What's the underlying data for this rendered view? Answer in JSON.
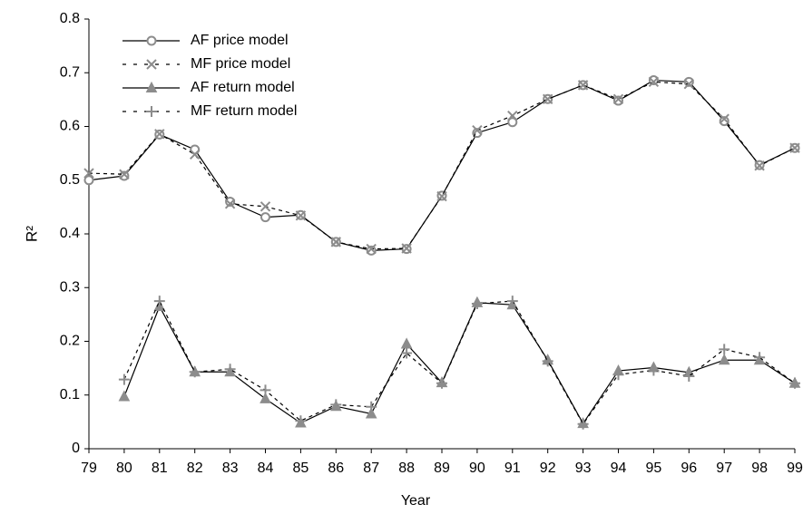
{
  "chart_data": {
    "type": "line",
    "x_label": "Year",
    "y_label": "R²",
    "categories": [
      "79",
      "80",
      "81",
      "82",
      "83",
      "84",
      "85",
      "86",
      "87",
      "88",
      "89",
      "90",
      "91",
      "92",
      "93",
      "94",
      "95",
      "96",
      "97",
      "98",
      "99"
    ],
    "ylim": [
      0,
      0.8
    ],
    "yticks": [
      0,
      0.1,
      0.2,
      0.3,
      0.4,
      0.5,
      0.6,
      0.7,
      0.8
    ],
    "grid": false,
    "legend": "upper left",
    "marker_color": "#8c8c8c",
    "series": [
      {
        "name": "AF price model",
        "color": "#000000",
        "dashed": false,
        "marker": "circle",
        "values": [
          0.5,
          0.508,
          0.585,
          0.557,
          0.46,
          0.431,
          0.435,
          0.385,
          0.369,
          0.372,
          0.471,
          0.588,
          0.608,
          0.651,
          0.677,
          0.648,
          0.686,
          0.683,
          0.61,
          0.528,
          0.56
        ]
      },
      {
        "name": "MF price model",
        "color": "#000000",
        "dashed": true,
        "marker": "x",
        "values": [
          0.513,
          0.511,
          0.586,
          0.548,
          0.456,
          0.451,
          0.434,
          0.385,
          0.372,
          0.373,
          0.47,
          0.593,
          0.62,
          0.651,
          0.677,
          0.651,
          0.683,
          0.679,
          0.614,
          0.527,
          0.56
        ]
      },
      {
        "name": "AF return model",
        "color": "#000000",
        "dashed": false,
        "marker": "triangle",
        "values": [
          null,
          0.097,
          0.265,
          0.143,
          0.143,
          0.093,
          0.048,
          0.079,
          0.065,
          0.195,
          0.123,
          0.272,
          0.268,
          0.165,
          0.047,
          0.145,
          0.151,
          0.142,
          0.165,
          0.165,
          0.122
        ]
      },
      {
        "name": "MF return model",
        "color": "#000000",
        "dashed": true,
        "marker": "plus",
        "values": [
          null,
          0.129,
          0.275,
          0.143,
          0.148,
          0.109,
          0.052,
          0.082,
          0.078,
          0.178,
          0.122,
          0.27,
          0.275,
          0.163,
          0.046,
          0.138,
          0.146,
          0.135,
          0.185,
          0.17,
          0.122
        ]
      }
    ]
  }
}
